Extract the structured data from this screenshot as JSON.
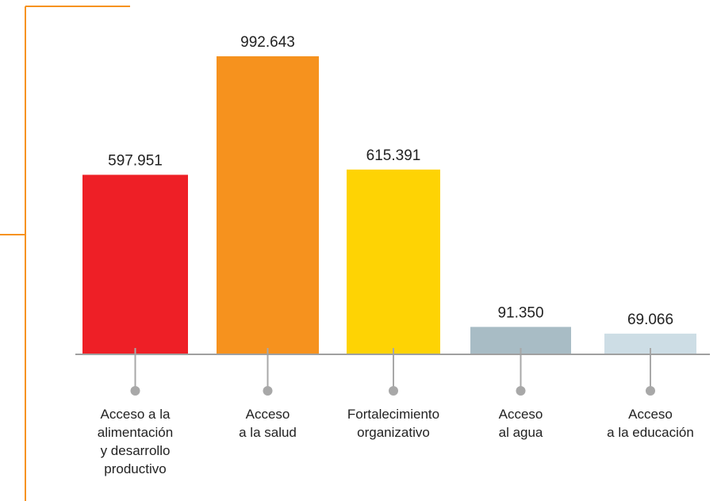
{
  "chart_data": {
    "type": "bar",
    "categories": [
      [
        "Acceso a la",
        "alimentación",
        "y desarrollo",
        "productivo"
      ],
      [
        "Acceso",
        "a la salud"
      ],
      [
        "Fortalecimiento",
        "organizativo"
      ],
      [
        "Acceso",
        "al agua"
      ],
      [
        "Acceso",
        "a la educación"
      ]
    ],
    "values": [
      597951,
      992643,
      615391,
      91350,
      69066
    ],
    "value_labels": [
      "597.951",
      "992.643",
      "615.391",
      "91.350",
      "69.066"
    ],
    "colors": [
      "#ee1f26",
      "#f6921e",
      "#fed304",
      "#a8bcc5",
      "#cddde5"
    ]
  }
}
